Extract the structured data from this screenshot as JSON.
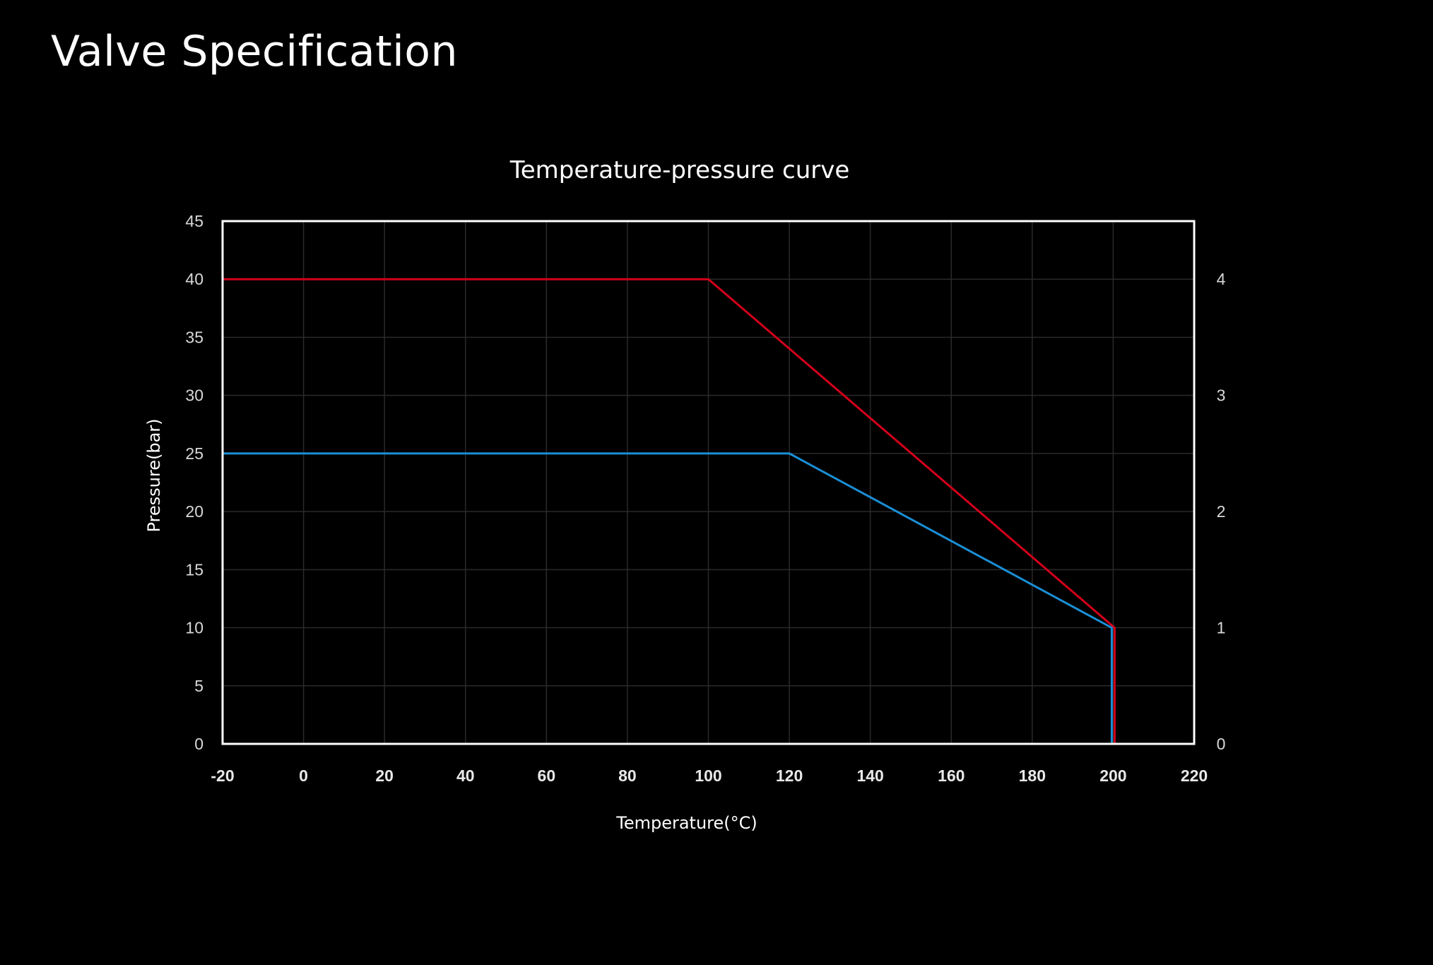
{
  "page": {
    "title": "Valve Specification"
  },
  "colors": {
    "background": "#000000",
    "frame": "#ffffff",
    "grid": "#2a2a2a",
    "red_series": "#d2001a",
    "blue_series": "#1a8fd6"
  },
  "chart_data": {
    "type": "line",
    "title": "Temperature-pressure curve",
    "xlabel": "Temperature(°C)",
    "ylabel": "Pressure(bar)",
    "xlim": [
      -20,
      220
    ],
    "ylim": [
      0,
      45
    ],
    "x_ticks": [
      -20,
      0,
      20,
      40,
      60,
      80,
      100,
      120,
      140,
      160,
      180,
      200,
      220
    ],
    "y_ticks": [
      0,
      5,
      10,
      15,
      20,
      25,
      30,
      35,
      40,
      45
    ],
    "y2_ticks": [
      0,
      1,
      2,
      3,
      4
    ],
    "y2lim": [
      0,
      4.5
    ],
    "grid": true,
    "series": [
      {
        "color": "#d2001a",
        "points": [
          [
            -20,
            40
          ],
          [
            100,
            40
          ],
          [
            200,
            10
          ],
          [
            200,
            0
          ]
        ]
      },
      {
        "color": "#1a8fd6",
        "points": [
          [
            -20,
            25
          ],
          [
            120,
            25
          ],
          [
            200,
            10
          ],
          [
            200,
            0
          ]
        ]
      }
    ]
  }
}
